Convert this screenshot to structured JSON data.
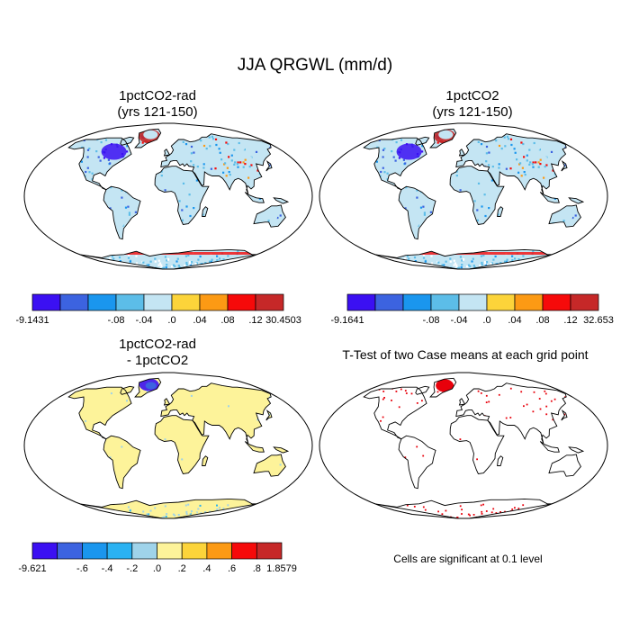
{
  "figure_title": "JJA QRGWL (mm/d)",
  "palette_main": [
    "#3b10f2",
    "#3c63e0",
    "#1a96ee",
    "#5cbde8",
    "#c4e5f3",
    "#fcd43a",
    "#fc9a14",
    "#f60a0a",
    "#c62828"
  ],
  "palette_diff": [
    "#3b10f2",
    "#3c63e0",
    "#1a96ee",
    "#2ab2f2",
    "#9fd3ea",
    "#fdf39a",
    "#fcd43a",
    "#fc9a14",
    "#f60a0a",
    "#c62828"
  ],
  "panels": [
    {
      "title_line1": "1pctCO2-rad",
      "title_line2": "(yrs 121-150)",
      "colorbar": {
        "labels": [
          "-9.1431",
          "-.08",
          "-.04",
          ".0",
          ".04",
          ".08",
          ".12",
          "30.4503"
        ]
      }
    },
    {
      "title_line1": "1pctCO2",
      "title_line2": "(yrs 121-150)",
      "colorbar": {
        "labels": [
          "-9.1641",
          "-.08",
          "-.04",
          ".0",
          ".04",
          ".08",
          ".12",
          "32.653"
        ]
      }
    },
    {
      "title_line1": "1pctCO2-rad",
      "title_line2": "- 1pctCO2",
      "colorbar": {
        "labels": [
          "-9.621",
          "-.6",
          "-.4",
          "-.2",
          ".0",
          ".2",
          ".4",
          ".6",
          ".8",
          "1.8579"
        ]
      }
    },
    {
      "title_line1": "T-Test of two Case means at each grid point",
      "note": "Cells are significant at 0.1 level"
    }
  ]
}
